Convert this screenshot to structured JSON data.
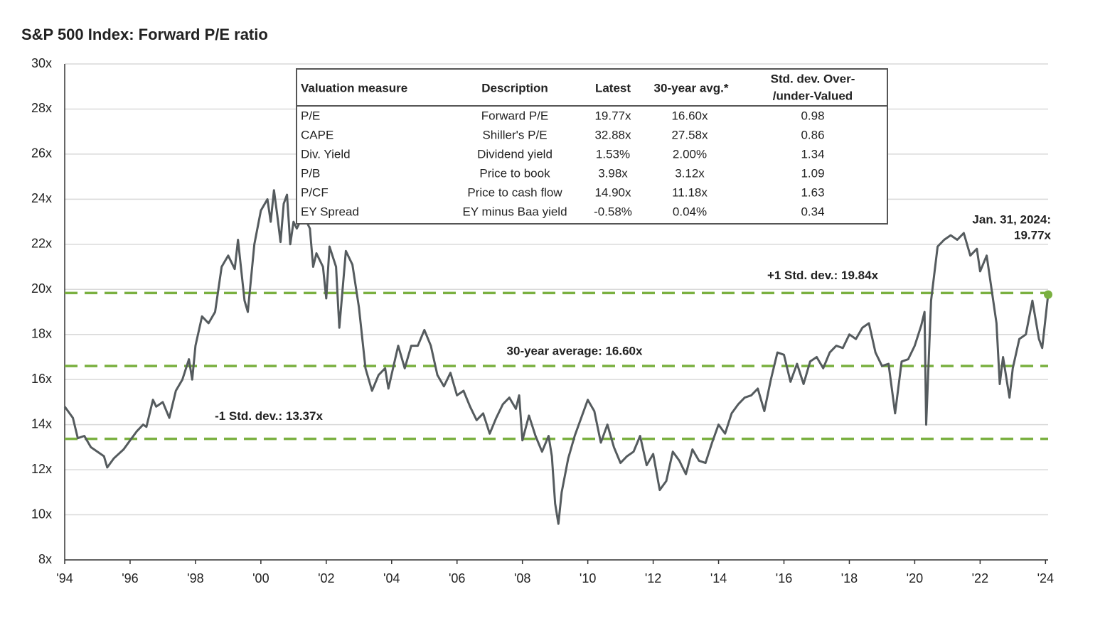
{
  "chart_data": {
    "type": "line",
    "title": "S&P 500 Index: Forward P/E ratio",
    "xlim": [
      1994,
      2024.08
    ],
    "ylim": [
      8,
      30
    ],
    "xticks": [
      {
        "value": 1994,
        "label": "'94"
      },
      {
        "value": 1996,
        "label": "'96"
      },
      {
        "value": 1998,
        "label": "'98"
      },
      {
        "value": 2000,
        "label": "'00"
      },
      {
        "value": 2002,
        "label": "'02"
      },
      {
        "value": 2004,
        "label": "'04"
      },
      {
        "value": 2006,
        "label": "'06"
      },
      {
        "value": 2008,
        "label": "'08"
      },
      {
        "value": 2010,
        "label": "'10"
      },
      {
        "value": 2012,
        "label": "'12"
      },
      {
        "value": 2014,
        "label": "'14"
      },
      {
        "value": 2016,
        "label": "'16"
      },
      {
        "value": 2018,
        "label": "'18"
      },
      {
        "value": 2020,
        "label": "'20"
      },
      {
        "value": 2022,
        "label": "'22"
      },
      {
        "value": 2024,
        "label": "'24"
      }
    ],
    "yticks": [
      {
        "value": 8,
        "label": "8x"
      },
      {
        "value": 10,
        "label": "10x"
      },
      {
        "value": 12,
        "label": "12x"
      },
      {
        "value": 14,
        "label": "14x"
      },
      {
        "value": 16,
        "label": "16x"
      },
      {
        "value": 18,
        "label": "18x"
      },
      {
        "value": 20,
        "label": "20x"
      },
      {
        "value": 22,
        "label": "22x"
      },
      {
        "value": 24,
        "label": "24x"
      },
      {
        "value": 26,
        "label": "26x"
      },
      {
        "value": 28,
        "label": "28x"
      },
      {
        "value": 30,
        "label": "30x"
      }
    ],
    "grid": true,
    "color": "#555b5e",
    "reference_color": "#7ab040",
    "x": [
      1994.0,
      1994.25,
      1994.4,
      1994.6,
      1994.8,
      1995.0,
      1995.2,
      1995.3,
      1995.5,
      1995.8,
      1996.0,
      1996.2,
      1996.4,
      1996.5,
      1996.6,
      1996.7,
      1996.8,
      1997.0,
      1997.2,
      1997.4,
      1997.6,
      1997.8,
      1997.9,
      1998.0,
      1998.2,
      1998.4,
      1998.6,
      1998.8,
      1999.0,
      1999.2,
      1999.3,
      1999.5,
      1999.6,
      1999.8,
      2000.0,
      2000.2,
      2000.3,
      2000.4,
      2000.5,
      2000.6,
      2000.7,
      2000.8,
      2000.9,
      2001.0,
      2001.1,
      2001.3,
      2001.5,
      2001.6,
      2001.7,
      2001.9,
      2002.0,
      2002.1,
      2002.3,
      2002.4,
      2002.6,
      2002.8,
      2003.0,
      2003.2,
      2003.4,
      2003.6,
      2003.8,
      2003.9,
      2004.2,
      2004.4,
      2004.6,
      2004.8,
      2005.0,
      2005.2,
      2005.4,
      2005.6,
      2005.8,
      2006.0,
      2006.2,
      2006.4,
      2006.6,
      2006.8,
      2007.0,
      2007.2,
      2007.4,
      2007.6,
      2007.8,
      2007.9,
      2008.0,
      2008.2,
      2008.4,
      2008.6,
      2008.8,
      2008.9,
      2009.0,
      2009.1,
      2009.2,
      2009.4,
      2009.6,
      2009.8,
      2010.0,
      2010.2,
      2010.4,
      2010.6,
      2010.8,
      2011.0,
      2011.2,
      2011.4,
      2011.6,
      2011.8,
      2012.0,
      2012.2,
      2012.4,
      2012.6,
      2012.8,
      2013.0,
      2013.2,
      2013.4,
      2013.6,
      2013.8,
      2014.0,
      2014.2,
      2014.4,
      2014.6,
      2014.8,
      2015.0,
      2015.2,
      2015.4,
      2015.6,
      2015.8,
      2016.0,
      2016.2,
      2016.4,
      2016.6,
      2016.8,
      2017.0,
      2017.2,
      2017.4,
      2017.6,
      2017.8,
      2018.0,
      2018.2,
      2018.4,
      2018.6,
      2018.8,
      2019.0,
      2019.2,
      2019.4,
      2019.6,
      2019.8,
      2020.0,
      2020.2,
      2020.3,
      2020.35,
      2020.5,
      2020.7,
      2020.9,
      2021.1,
      2021.3,
      2021.5,
      2021.7,
      2021.9,
      2022.0,
      2022.2,
      2022.4,
      2022.5,
      2022.6,
      2022.7,
      2022.9,
      2023.0,
      2023.2,
      2023.4,
      2023.6,
      2023.8,
      2023.9,
      2024.08
    ],
    "values": [
      14.8,
      14.3,
      13.4,
      13.5,
      13.0,
      12.8,
      12.6,
      12.1,
      12.5,
      12.9,
      13.3,
      13.7,
      14.0,
      13.9,
      14.5,
      15.1,
      14.8,
      15.0,
      14.3,
      15.5,
      16.0,
      16.9,
      16.0,
      17.5,
      18.8,
      18.5,
      19.0,
      21.0,
      21.5,
      20.9,
      22.2,
      19.5,
      19.0,
      22.0,
      23.5,
      24.0,
      23.0,
      24.4,
      23.3,
      22.1,
      23.8,
      24.2,
      22.0,
      23.0,
      22.7,
      23.3,
      22.7,
      21.0,
      21.6,
      21.0,
      19.6,
      21.9,
      21.0,
      18.3,
      21.7,
      21.1,
      19.2,
      16.5,
      15.5,
      16.2,
      16.5,
      15.6,
      17.5,
      16.5,
      17.5,
      17.5,
      18.2,
      17.5,
      16.2,
      15.7,
      16.3,
      15.3,
      15.5,
      14.8,
      14.2,
      14.5,
      13.6,
      14.3,
      14.9,
      15.2,
      14.7,
      15.3,
      13.3,
      14.4,
      13.5,
      12.8,
      13.5,
      12.6,
      10.5,
      9.6,
      11.0,
      12.5,
      13.5,
      14.3,
      15.1,
      14.6,
      13.2,
      14.0,
      13.0,
      12.3,
      12.6,
      12.8,
      13.5,
      12.2,
      12.7,
      11.1,
      11.5,
      12.8,
      12.4,
      11.8,
      12.9,
      12.4,
      12.3,
      13.2,
      14.0,
      13.6,
      14.5,
      14.9,
      15.2,
      15.3,
      15.6,
      14.6,
      16.0,
      17.2,
      17.1,
      15.9,
      16.7,
      15.8,
      16.8,
      17.0,
      16.5,
      17.2,
      17.5,
      17.4,
      18.0,
      17.8,
      18.3,
      18.5,
      17.2,
      16.6,
      16.7,
      14.5,
      16.8,
      16.9,
      17.5,
      18.4,
      19.0,
      14.0,
      19.5,
      21.9,
      22.2,
      22.4,
      22.2,
      22.5,
      21.5,
      21.8,
      20.8,
      21.5,
      19.5,
      18.5,
      15.8,
      17.0,
      15.2,
      16.5,
      17.8,
      18.0,
      19.5,
      17.8,
      17.4,
      19.77
    ],
    "reference_lines": [
      {
        "label": "+1 Std. dev.: 19.84x",
        "value": 19.84
      },
      {
        "label": "30-year average: 16.60x",
        "value": 16.6
      },
      {
        "label": "-1 Std. dev.: 13.37x",
        "value": 13.37
      }
    ],
    "endpoint": {
      "label": [
        "Jan. 31, 2024:",
        "19.77x"
      ],
      "x": 2024.08,
      "value": 19.77
    },
    "table": {
      "columns": [
        "Valuation measure",
        "Description",
        "Latest",
        "30-year avg.*",
        [
          "Std. dev. Over-",
          "/under-Valued"
        ]
      ],
      "rows": [
        [
          "P/E",
          "Forward P/E",
          "19.77x",
          "16.60x",
          "0.98"
        ],
        [
          "CAPE",
          "Shiller's P/E",
          "32.88x",
          "27.58x",
          "0.86"
        ],
        [
          "Div. Yield",
          "Dividend yield",
          "1.53%",
          "2.00%",
          "1.34"
        ],
        [
          "P/B",
          "Price to book",
          "3.98x",
          "3.12x",
          "1.09"
        ],
        [
          "P/CF",
          "Price to cash flow",
          "14.90x",
          "11.18x",
          "1.63"
        ],
        [
          "EY Spread",
          "EY minus Baa yield",
          "-0.58%",
          "0.04%",
          "0.34"
        ]
      ]
    }
  }
}
